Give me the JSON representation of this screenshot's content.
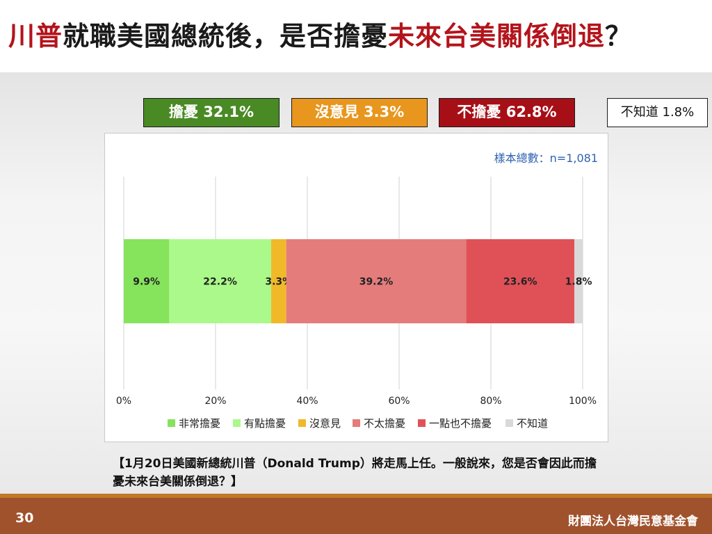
{
  "title": {
    "part1": "川普",
    "part2": "就職美國總統後，是否擔憂",
    "part3": "未來台美關係倒退",
    "part4": "？"
  },
  "summary": {
    "worry": "擔憂 32.1%",
    "no_opinion": "沒意見 3.3%",
    "not_worry": "不擔憂 62.8%",
    "unknown": "不知道 1.8%"
  },
  "sample_size": "樣本總數：n=1,081",
  "question": "【1月20日美國新總統川普（Donald Trump）將走馬上任。一般說來，您是否會因此而擔憂未來台美關係倒退？】",
  "footer": {
    "page_number": "30",
    "org": "財團法人台灣民意基金會"
  },
  "colors": {
    "very_worried": "#86e35c",
    "somewhat_worried": "#aaf98a",
    "no_opinion": "#f0b92a",
    "not_very_worried": "#e47c7c",
    "not_at_all_worried": "#e05157",
    "unknown": "#d9d9d9"
  },
  "chart_data": {
    "type": "bar",
    "orientation": "horizontal-stacked-100%",
    "xlim": [
      0,
      100
    ],
    "x_ticks": [
      "0%",
      "20%",
      "40%",
      "60%",
      "80%",
      "100%"
    ],
    "grid": true,
    "legend_position": "bottom",
    "series": [
      {
        "name": "非常擔憂",
        "value": 9.9,
        "label": "9.9%",
        "color": "#86e35c"
      },
      {
        "name": "有點擔憂",
        "value": 22.2,
        "label": "22.2%",
        "color": "#aaf98a"
      },
      {
        "name": "沒意見",
        "value": 3.3,
        "label": "3.3%",
        "color": "#f0b92a"
      },
      {
        "name": "不太擔憂",
        "value": 39.2,
        "label": "39.2%",
        "color": "#e47c7c"
      },
      {
        "name": "一點也不擔憂",
        "value": 23.6,
        "label": "23.6%",
        "color": "#e05157"
      },
      {
        "name": "不知道",
        "value": 1.8,
        "label": "1.8%",
        "color": "#d9d9d9"
      }
    ]
  }
}
